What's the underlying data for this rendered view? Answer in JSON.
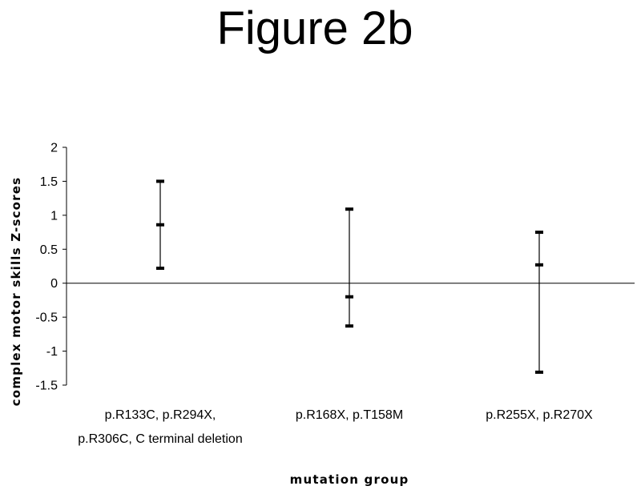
{
  "chart_data": {
    "type": "errorbar",
    "title": "Figure 2b",
    "xlabel": "mutation group",
    "ylabel": "complex motor skills Z-scores",
    "ylim": [
      -1.5,
      2
    ],
    "yticks": [
      2,
      1.5,
      1,
      0.5,
      0,
      -0.5,
      -1,
      -1.5
    ],
    "ytick_labels": [
      "2",
      "1.5",
      "1",
      "0.5",
      "0",
      "-0.5",
      "-1",
      "-1.5"
    ],
    "categories": [
      [
        "p.R133C, p.R294X,",
        "p.R306C, C terminal deletion"
      ],
      [
        "p.R168X, p.T158M"
      ],
      [
        "p.R255X, p.R270X"
      ]
    ],
    "mean": [
      0.86,
      -0.2,
      0.27
    ],
    "upper": [
      1.5,
      1.09,
      0.75
    ],
    "lower": [
      0.22,
      -0.63,
      -1.31
    ],
    "grid": false,
    "legend": "none"
  }
}
